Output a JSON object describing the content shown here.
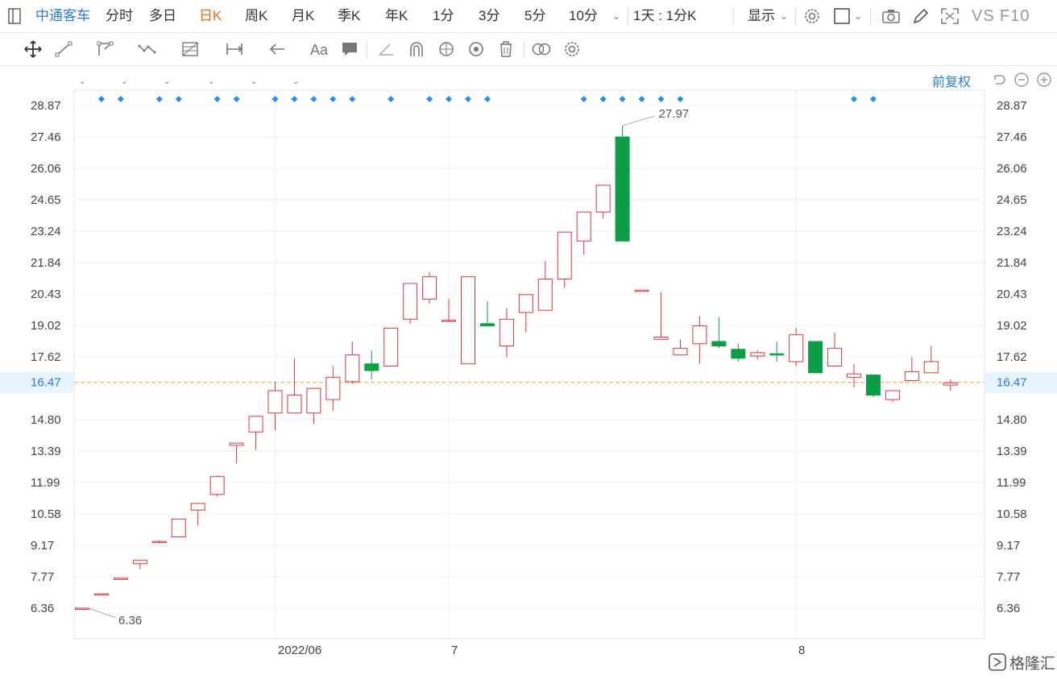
{
  "toolbar": {
    "stock_name": "中通客车",
    "periods": [
      "分时",
      "多日",
      "日K",
      "周K",
      "月K",
      "季K",
      "年K",
      "1分",
      "3分",
      "5分",
      "10分"
    ],
    "active_period": "日K",
    "range_selector": "1天 : 1分K",
    "display_label": "显示",
    "vs_label": "VS",
    "f10_label": "F10"
  },
  "chart_header": {
    "adjust_label": "前复权"
  },
  "brand": {
    "name": "格隆汇"
  },
  "colors": {
    "up": "#d9363e",
    "down": "#0c9e46",
    "accent": "#2d7bd8",
    "current_line": "#e6a23c",
    "current_bg": "#e6f4ff"
  },
  "chart_data": {
    "type": "candlestick",
    "y_ticks": [
      "28.87",
      "27.46",
      "26.06",
      "24.65",
      "23.24",
      "21.84",
      "20.43",
      "19.02",
      "17.62",
      "16.47",
      "14.80",
      "13.39",
      "11.99",
      "10.58",
      "9.17",
      "7.77",
      "6.36"
    ],
    "x_labels": [
      "2022/06",
      "7",
      "8"
    ],
    "current_price": "16.47",
    "high_label": "27.97",
    "low_label": "6.36",
    "ylim": [
      6.36,
      28.87
    ],
    "candles": [
      {
        "o": 6.36,
        "c": 6.36,
        "h": 6.36,
        "l": 6.36
      },
      {
        "o": 7.0,
        "c": 7.0,
        "h": 7.0,
        "l": 7.0
      },
      {
        "o": 7.7,
        "c": 7.7,
        "h": 7.7,
        "l": 7.7
      },
      {
        "o": 8.35,
        "c": 8.5,
        "h": 8.5,
        "l": 8.1
      },
      {
        "o": 9.3,
        "c": 9.35,
        "h": 9.4,
        "l": 9.25
      },
      {
        "o": 9.55,
        "c": 10.35,
        "h": 10.35,
        "l": 9.55
      },
      {
        "o": 10.75,
        "c": 11.05,
        "h": 11.05,
        "l": 10.05
      },
      {
        "o": 11.45,
        "c": 12.25,
        "h": 12.3,
        "l": 11.35
      },
      {
        "o": 13.65,
        "c": 13.75,
        "h": 13.75,
        "l": 12.85
      },
      {
        "o": 14.25,
        "c": 14.95,
        "h": 14.95,
        "l": 13.45
      },
      {
        "o": 15.1,
        "c": 16.1,
        "h": 16.5,
        "l": 14.3
      },
      {
        "o": 15.1,
        "c": 15.9,
        "h": 17.55,
        "l": 15.1
      },
      {
        "o": 15.1,
        "c": 16.2,
        "h": 16.2,
        "l": 14.6
      },
      {
        "o": 15.7,
        "c": 16.7,
        "h": 17.2,
        "l": 15.2
      },
      {
        "o": 16.5,
        "c": 17.7,
        "h": 18.3,
        "l": 16.4
      },
      {
        "o": 17.3,
        "c": 17.0,
        "h": 17.9,
        "l": 16.6
      },
      {
        "o": 17.2,
        "c": 18.9,
        "h": 18.9,
        "l": 17.2
      },
      {
        "o": 19.3,
        "c": 20.9,
        "h": 20.9,
        "l": 19.1
      },
      {
        "o": 20.2,
        "c": 21.2,
        "h": 21.4,
        "l": 20.0
      },
      {
        "o": 19.25,
        "c": 19.25,
        "h": 20.2,
        "l": 19.25
      },
      {
        "o": 17.3,
        "c": 21.2,
        "h": 21.2,
        "l": 17.3
      },
      {
        "o": 19.1,
        "c": 19.0,
        "h": 20.1,
        "l": 19.0
      },
      {
        "o": 18.1,
        "c": 19.3,
        "h": 19.8,
        "l": 17.6
      },
      {
        "o": 19.6,
        "c": 20.4,
        "h": 20.4,
        "l": 18.7
      },
      {
        "o": 19.7,
        "c": 21.1,
        "h": 21.9,
        "l": 19.7
      },
      {
        "o": 21.1,
        "c": 23.2,
        "h": 23.2,
        "l": 20.7
      },
      {
        "o": 22.8,
        "c": 24.1,
        "h": 24.1,
        "l": 22.2
      },
      {
        "o": 24.1,
        "c": 25.3,
        "h": 25.3,
        "l": 23.8
      },
      {
        "o": 27.46,
        "c": 22.8,
        "h": 27.97,
        "l": 22.8
      },
      {
        "o": 20.6,
        "c": 20.6,
        "h": 20.6,
        "l": 20.6
      },
      {
        "o": 18.4,
        "c": 18.5,
        "h": 20.5,
        "l": 18.4
      },
      {
        "o": 17.7,
        "c": 18.0,
        "h": 18.4,
        "l": 17.7
      },
      {
        "o": 18.2,
        "c": 19.0,
        "h": 19.45,
        "l": 17.3
      },
      {
        "o": 18.3,
        "c": 18.1,
        "h": 19.4,
        "l": 18.0
      },
      {
        "o": 17.95,
        "c": 17.55,
        "h": 18.2,
        "l": 17.4
      },
      {
        "o": 17.65,
        "c": 17.8,
        "h": 17.9,
        "l": 17.5
      },
      {
        "o": 17.75,
        "c": 17.7,
        "h": 18.3,
        "l": 17.4
      },
      {
        "o": 17.4,
        "c": 18.6,
        "h": 18.9,
        "l": 17.2
      },
      {
        "o": 18.3,
        "c": 16.9,
        "h": 18.3,
        "l": 16.9
      },
      {
        "o": 17.2,
        "c": 18.0,
        "h": 18.7,
        "l": 17.2
      },
      {
        "o": 16.7,
        "c": 16.85,
        "h": 17.3,
        "l": 16.25
      },
      {
        "o": 16.8,
        "c": 15.9,
        "h": 16.8,
        "l": 15.8
      },
      {
        "o": 15.7,
        "c": 16.1,
        "h": 16.1,
        "l": 15.6
      },
      {
        "o": 16.55,
        "c": 16.95,
        "h": 17.6,
        "l": 16.55
      },
      {
        "o": 16.9,
        "c": 17.4,
        "h": 18.1,
        "l": 16.9
      },
      {
        "o": 16.35,
        "c": 16.45,
        "h": 16.6,
        "l": 16.1
      }
    ],
    "event_markers": "blue diamonds along top"
  }
}
